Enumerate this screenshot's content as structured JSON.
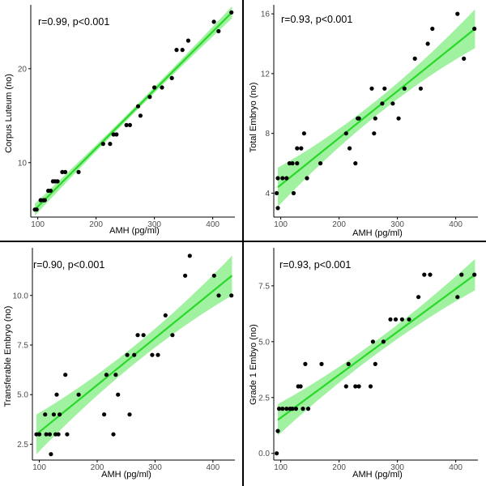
{
  "colors": {
    "line": "#29d829",
    "band": "#8ff08f",
    "point": "#000000",
    "axis": "#000000",
    "divider": "#000000",
    "background": "#ffffff"
  },
  "chart_data": [
    {
      "id": "corpus-luteum",
      "type": "scatter",
      "annotation": "r=0.99, p<0.001",
      "xlabel": "AMH (pg/ml)",
      "ylabel": "Corpus Luteum (no)",
      "xlim": [
        88,
        438
      ],
      "ylim": [
        4.2,
        26.8
      ],
      "xticks": [
        100,
        200,
        300,
        400
      ],
      "yticks": [
        10,
        20
      ],
      "fit": {
        "x0": 95,
        "y0": 5.0,
        "x1": 433,
        "y1": 26.0
      },
      "band_halfwidth": {
        "end": 0.65,
        "mid": 0.3
      },
      "points": [
        [
          95,
          5
        ],
        [
          98,
          5
        ],
        [
          105,
          6
        ],
        [
          110,
          6
        ],
        [
          112,
          6
        ],
        [
          118,
          7
        ],
        [
          122,
          7
        ],
        [
          126,
          8
        ],
        [
          130,
          8
        ],
        [
          134,
          8
        ],
        [
          142,
          9
        ],
        [
          147,
          9
        ],
        [
          170,
          9
        ],
        [
          212,
          12
        ],
        [
          224,
          12
        ],
        [
          230,
          13
        ],
        [
          235,
          13
        ],
        [
          252,
          14
        ],
        [
          258,
          14
        ],
        [
          272,
          16
        ],
        [
          276,
          15
        ],
        [
          292,
          17
        ],
        [
          300,
          18
        ],
        [
          313,
          18
        ],
        [
          330,
          19
        ],
        [
          338,
          22
        ],
        [
          348,
          22
        ],
        [
          358,
          23
        ],
        [
          402,
          25
        ],
        [
          410,
          24
        ],
        [
          432,
          26
        ]
      ]
    },
    {
      "id": "total-embryo",
      "type": "scatter",
      "annotation": "r=0.93, p<0.001",
      "xlabel": "AMH (pg/ml)",
      "ylabel": "Total Embryo (no)",
      "xlim": [
        88,
        438
      ],
      "ylim": [
        2.4,
        16.6
      ],
      "xticks": [
        100,
        200,
        300,
        400
      ],
      "yticks": [
        4,
        8,
        12,
        16
      ],
      "fit": {
        "x0": 95,
        "y0": 4.4,
        "x1": 433,
        "y1": 15.0
      },
      "band_halfwidth": {
        "end": 1.3,
        "mid": 0.5
      },
      "points": [
        [
          95,
          3
        ],
        [
          93,
          4
        ],
        [
          95,
          5
        ],
        [
          103,
          5
        ],
        [
          110,
          5
        ],
        [
          115,
          6
        ],
        [
          120,
          6
        ],
        [
          122,
          4
        ],
        [
          128,
          7
        ],
        [
          135,
          7
        ],
        [
          128,
          6
        ],
        [
          140,
          8
        ],
        [
          145,
          5
        ],
        [
          168,
          6
        ],
        [
          212,
          8
        ],
        [
          218,
          7
        ],
        [
          228,
          6
        ],
        [
          232,
          9
        ],
        [
          234,
          9
        ],
        [
          256,
          11
        ],
        [
          260,
          8
        ],
        [
          262,
          9
        ],
        [
          274,
          10
        ],
        [
          278,
          11
        ],
        [
          292,
          10
        ],
        [
          302,
          9
        ],
        [
          312,
          11
        ],
        [
          330,
          13
        ],
        [
          340,
          11
        ],
        [
          352,
          14
        ],
        [
          360,
          15
        ],
        [
          403,
          16
        ],
        [
          414,
          13
        ],
        [
          432,
          15
        ]
      ]
    },
    {
      "id": "transferable-embryo",
      "type": "scatter",
      "annotation": "r=0.90, p<0.001",
      "xlabel": "AMH (pg/ml)",
      "ylabel": "Transferable Embryo (no)",
      "xlim": [
        88,
        438
      ],
      "ylim": [
        1.7,
        12.4
      ],
      "xticks": [
        100,
        200,
        300,
        400
      ],
      "yticks": [
        2.5,
        5.0,
        7.5,
        10.0
      ],
      "fit": {
        "x0": 95,
        "y0": 3.0,
        "x1": 433,
        "y1": 11.0
      },
      "band_halfwidth": {
        "end": 1.0,
        "mid": 0.45
      },
      "points": [
        [
          95,
          3
        ],
        [
          100,
          3
        ],
        [
          110,
          4
        ],
        [
          112,
          3
        ],
        [
          118,
          3
        ],
        [
          120,
          2
        ],
        [
          125,
          4
        ],
        [
          128,
          3
        ],
        [
          130,
          5
        ],
        [
          133,
          3
        ],
        [
          135,
          4
        ],
        [
          145,
          6
        ],
        [
          148,
          3
        ],
        [
          168,
          5
        ],
        [
          212,
          4
        ],
        [
          216,
          6
        ],
        [
          228,
          3
        ],
        [
          232,
          6
        ],
        [
          236,
          5
        ],
        [
          252,
          7
        ],
        [
          256,
          4
        ],
        [
          264,
          7
        ],
        [
          270,
          8
        ],
        [
          280,
          8
        ],
        [
          295,
          7
        ],
        [
          305,
          7
        ],
        [
          318,
          9
        ],
        [
          330,
          8
        ],
        [
          352,
          11
        ],
        [
          360,
          12
        ],
        [
          402,
          11
        ],
        [
          410,
          10
        ],
        [
          432,
          10
        ]
      ]
    },
    {
      "id": "grade1-embryo",
      "type": "scatter",
      "annotation": "r=0.93, p<0.001",
      "xlabel": "AMH (pg/ml)",
      "ylabel": "Grade 1 Embyo (no)",
      "xlim": [
        88,
        438
      ],
      "ylim": [
        -0.3,
        9.2
      ],
      "xticks": [
        100,
        200,
        300,
        400
      ],
      "yticks": [
        0.0,
        2.5,
        5.0,
        7.5
      ],
      "fit": {
        "x0": 95,
        "y0": 1.5,
        "x1": 433,
        "y1": 8.0
      },
      "band_halfwidth": {
        "end": 0.7,
        "mid": 0.3
      },
      "points": [
        [
          93,
          0
        ],
        [
          95,
          1
        ],
        [
          97,
          2
        ],
        [
          103,
          2
        ],
        [
          110,
          2
        ],
        [
          116,
          2
        ],
        [
          120,
          2
        ],
        [
          126,
          2
        ],
        [
          130,
          3
        ],
        [
          134,
          3
        ],
        [
          138,
          2
        ],
        [
          142,
          4
        ],
        [
          147,
          2
        ],
        [
          170,
          4
        ],
        [
          212,
          3
        ],
        [
          216,
          4
        ],
        [
          228,
          3
        ],
        [
          234,
          3
        ],
        [
          254,
          3
        ],
        [
          258,
          5
        ],
        [
          262,
          4
        ],
        [
          276,
          5
        ],
        [
          288,
          6
        ],
        [
          297,
          6
        ],
        [
          308,
          6
        ],
        [
          320,
          6
        ],
        [
          336,
          7
        ],
        [
          346,
          8
        ],
        [
          356,
          8
        ],
        [
          403,
          7
        ],
        [
          410,
          8
        ],
        [
          432,
          8
        ]
      ]
    }
  ]
}
